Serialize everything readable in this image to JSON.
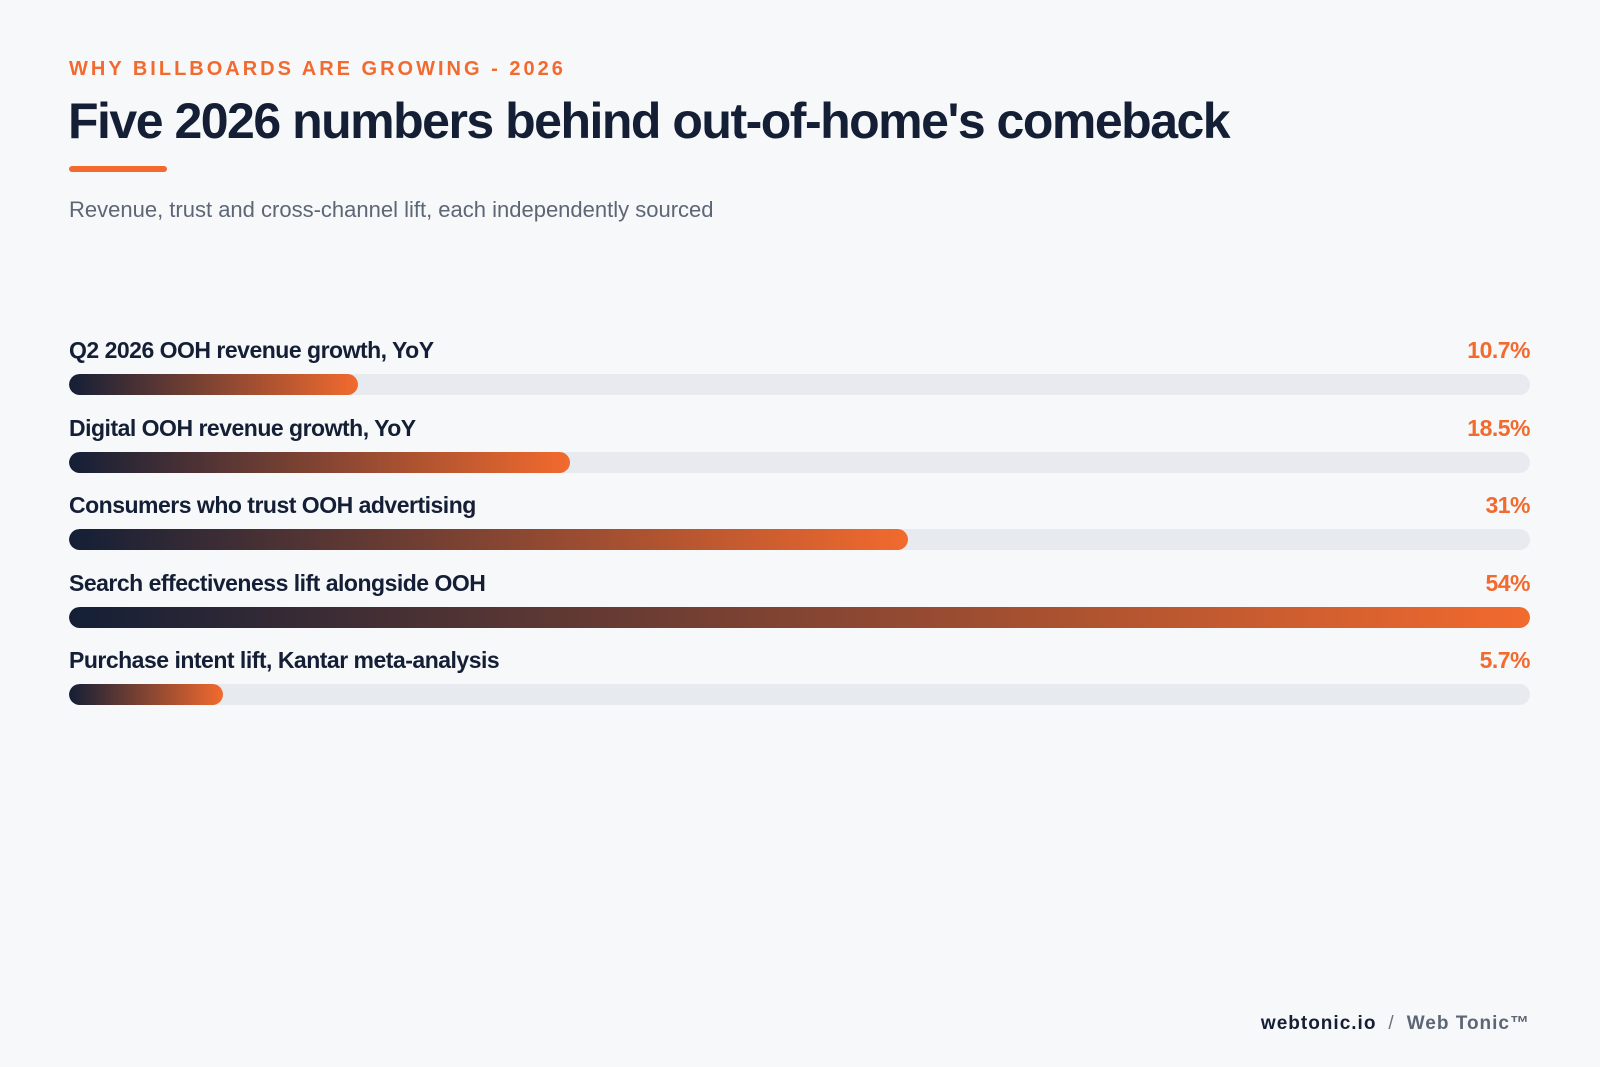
{
  "eyebrow": "WHY BILLBOARDS ARE GROWING - 2026",
  "footer": {
    "domain": "webtonic.io",
    "separator": "/",
    "brand": "Web Tonic™"
  },
  "colors": {
    "accent": "#f26a2e",
    "navy": "#141f36",
    "track": "#e7ebef",
    "background": "#f6f8fa"
  },
  "chart_data": {
    "type": "bar",
    "orientation": "horizontal",
    "title": "Five 2026 numbers behind out-of-home's comeback",
    "subtitle": "Revenue, trust and cross-channel lift, each independently sourced",
    "categories": [
      "Q2 2026 OOH revenue growth, YoY",
      "Digital OOH revenue growth, YoY",
      "Consumers who trust OOH advertising",
      "Search effectiveness lift alongside OOH",
      "Purchase intent lift, Kantar meta-analysis"
    ],
    "values": [
      10.7,
      18.5,
      31,
      54,
      5.7
    ],
    "value_labels": [
      "10.7%",
      "18.5%",
      "31%",
      "54%",
      "5.7%"
    ],
    "xlim": [
      0,
      54
    ],
    "grid": false,
    "legend": "none"
  }
}
